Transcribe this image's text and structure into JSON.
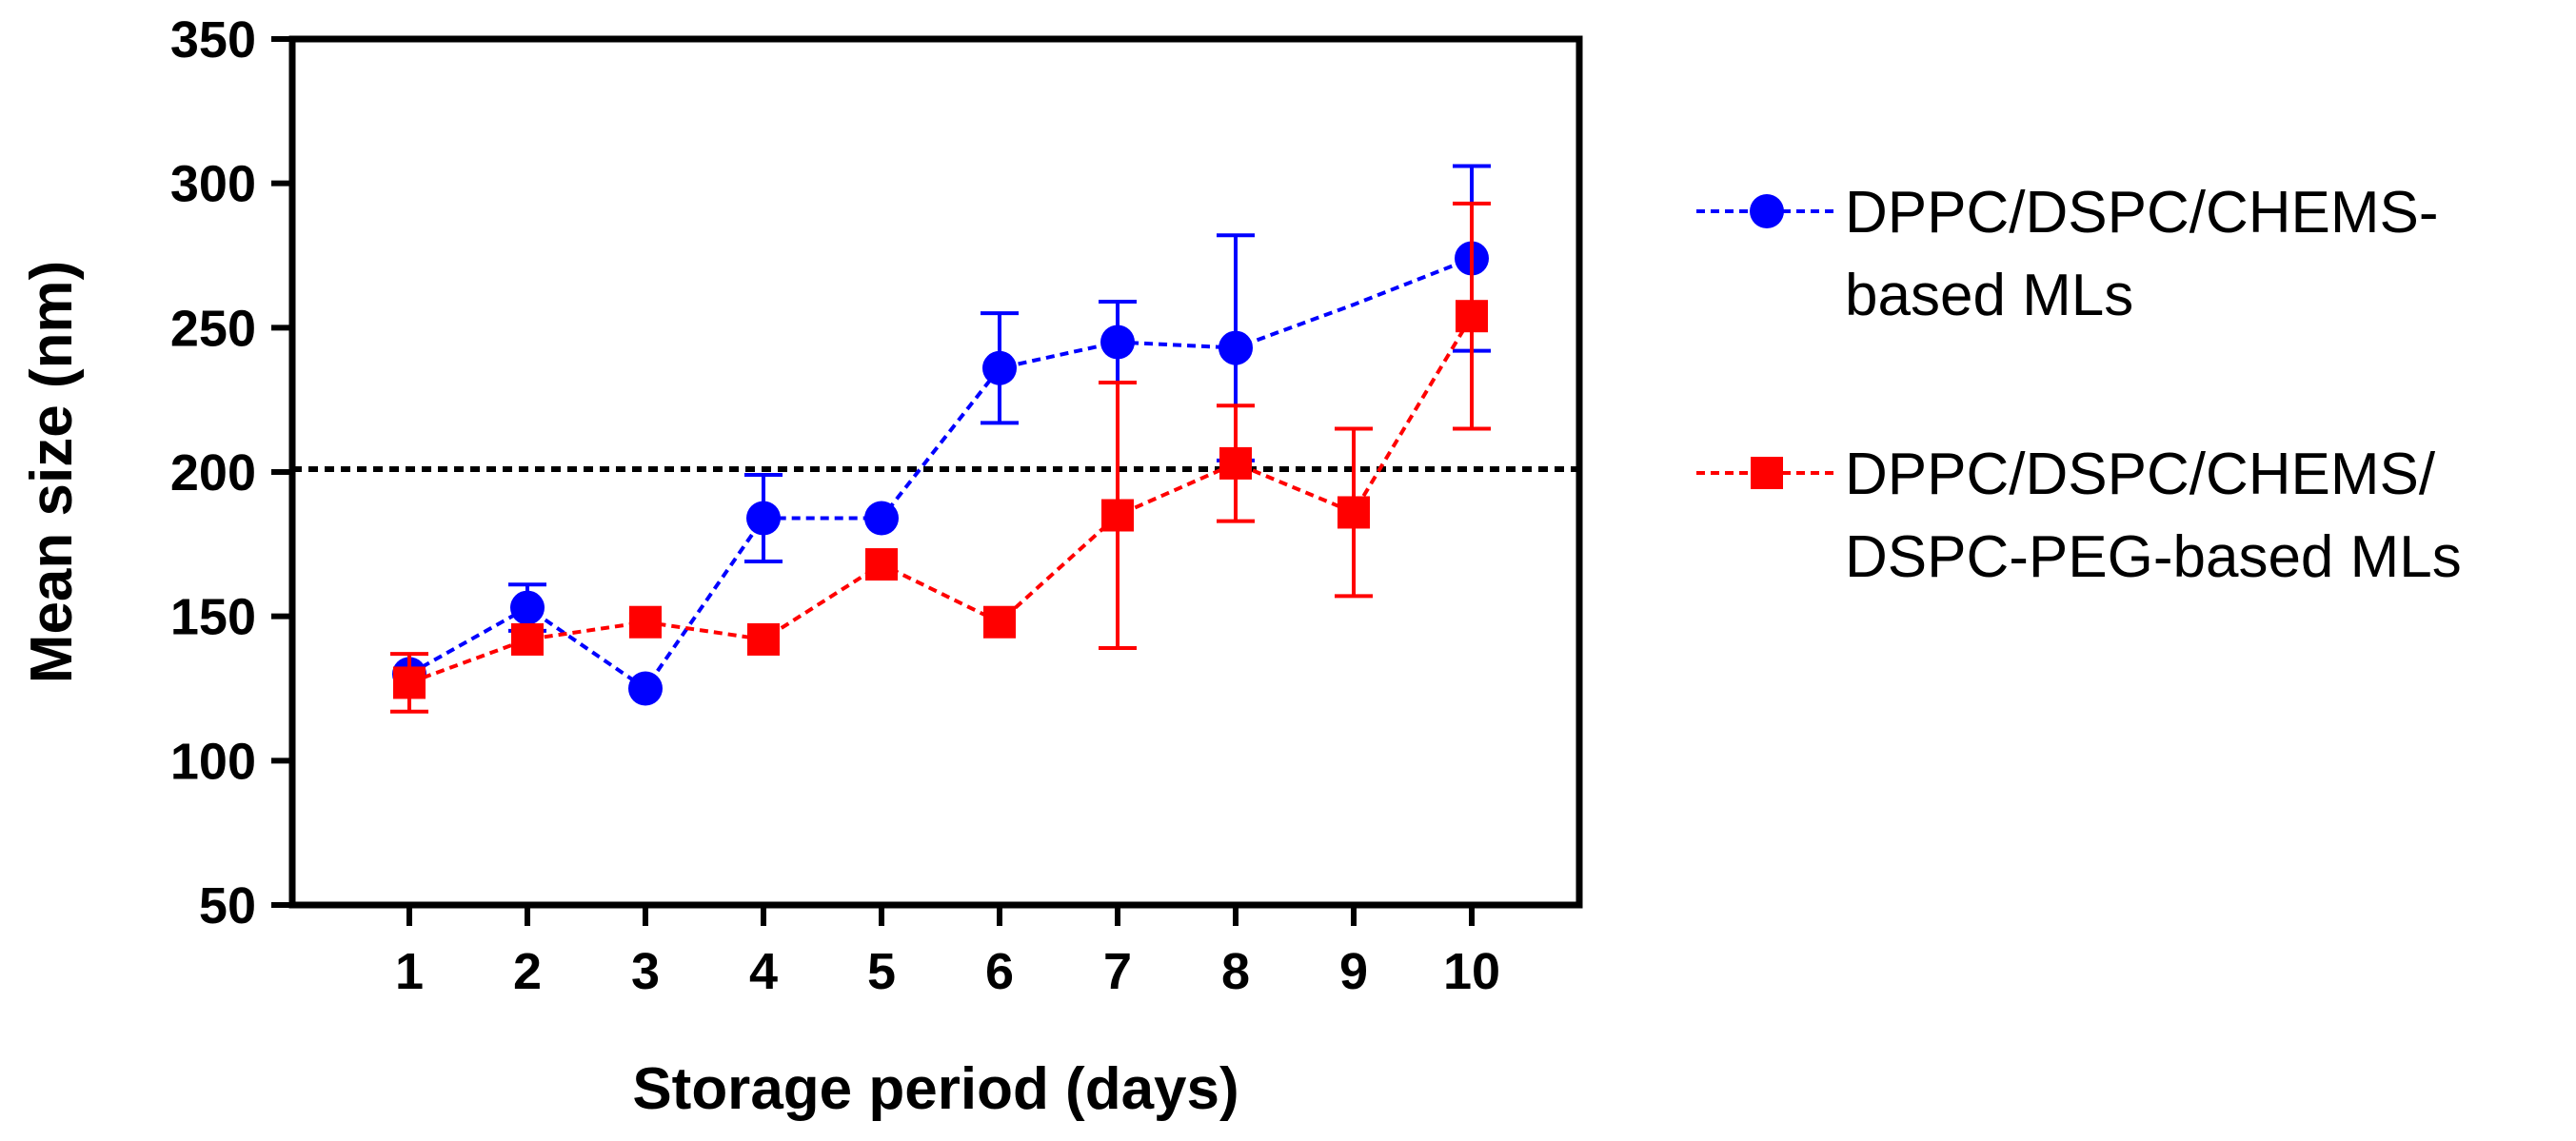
{
  "chart_data": {
    "type": "line",
    "title": "",
    "xlabel": "Storage period (days)",
    "ylabel": "Mean size (nm)",
    "ylim": [
      50,
      350
    ],
    "yticks": [
      50,
      100,
      150,
      200,
      250,
      300,
      350
    ],
    "x": [
      1,
      2,
      3,
      4,
      5,
      6,
      7,
      8,
      9,
      10
    ],
    "xtick_labels": [
      "1",
      "2",
      "3",
      "4",
      "5",
      "6",
      "7",
      "8",
      "9",
      "10"
    ],
    "reference_line": {
      "y": 201,
      "style": "dotted",
      "color": "#000000"
    },
    "grid": false,
    "legend_position": "right",
    "series": [
      {
        "name": "DPPC/DSPC/CHEMS-based MLs",
        "legend_lines": [
          "DPPC/DSPC/CHEMS-",
          "based MLs"
        ],
        "color": "#0000ff",
        "marker": "circle",
        "values": [
          130,
          153,
          125,
          184,
          184,
          236,
          245,
          243,
          258,
          274
        ],
        "error": [
          null,
          8,
          null,
          15,
          null,
          19,
          14,
          39,
          null,
          32
        ],
        "marker_visible": [
          true,
          true,
          true,
          true,
          true,
          true,
          true,
          true,
          false,
          true
        ]
      },
      {
        "name": "DPPC/DSPC/CHEMS/DSPC-PEG-based MLs",
        "legend_lines": [
          "DPPC/DSPC/CHEMS/",
          "DSPC-PEG-based MLs"
        ],
        "color": "#ff0000",
        "marker": "square",
        "values": [
          127,
          142,
          148,
          142,
          168,
          148,
          185,
          203,
          186,
          254
        ],
        "error": [
          10,
          null,
          null,
          null,
          null,
          null,
          46,
          20,
          29,
          39
        ],
        "marker_visible": [
          true,
          true,
          true,
          true,
          true,
          true,
          true,
          true,
          true,
          true
        ]
      }
    ]
  }
}
